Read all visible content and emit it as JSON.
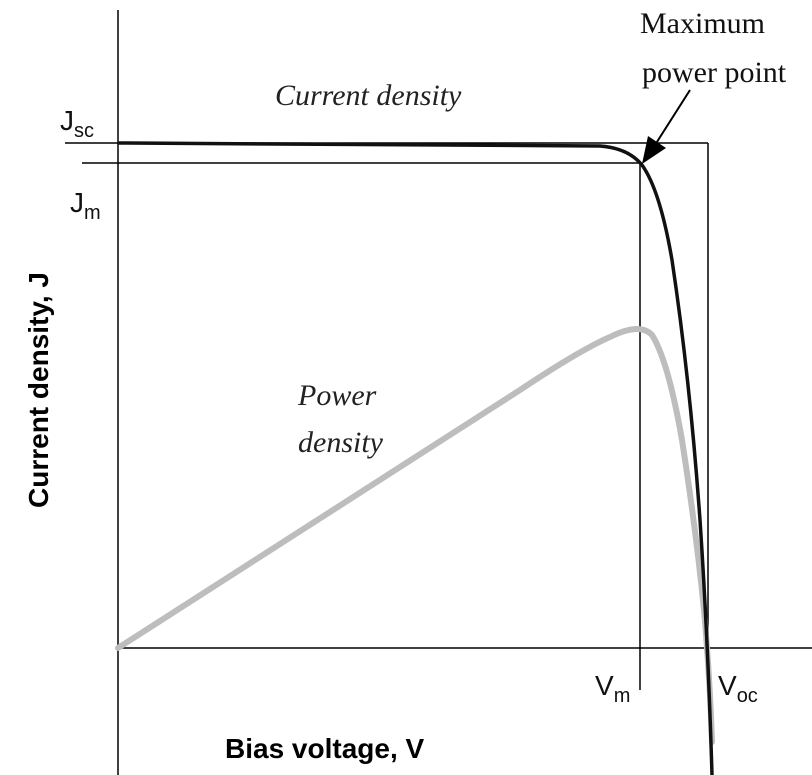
{
  "annotation": {
    "line1": "Maximum",
    "line2": "power point"
  },
  "current_curve_label": "Current density",
  "power_curve_label": {
    "line1": "Power",
    "line2": "density"
  },
  "jsc_label": {
    "main": "J",
    "sub": "sc"
  },
  "jm_label": {
    "main": "J",
    "sub": "m"
  },
  "vm_label": {
    "main": "V",
    "sub": "m"
  },
  "voc_label": {
    "main": "V",
    "sub": "oc"
  },
  "y_axis_label": "Current density, J",
  "x_axis_label": "Bias voltage, V"
}
